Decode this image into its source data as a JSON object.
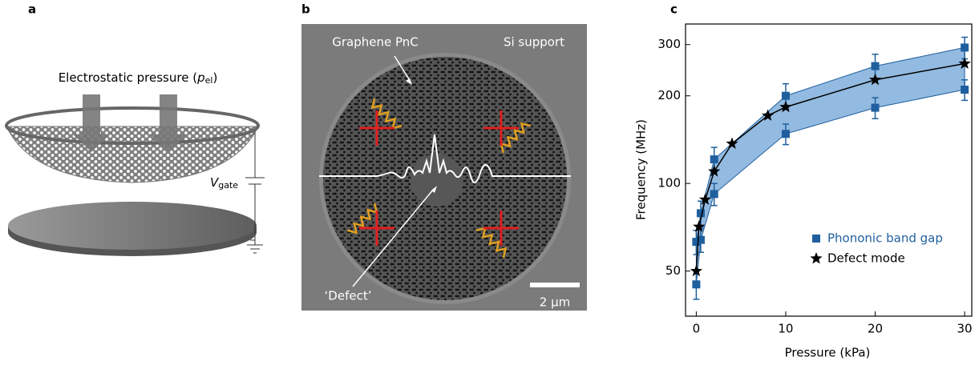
{
  "panel_labels": [
    "a",
    "b",
    "c"
  ],
  "panel_a": {
    "pressure_label": [
      "Electrostatic pressure (",
      "p",
      "el",
      ")"
    ],
    "gate_label": [
      "V",
      "gate"
    ]
  },
  "panel_b": {
    "membrane_label": "Graphene PnC",
    "support_label": "Si support",
    "defect_label": "‘Defect’",
    "scale_label": "2 μm"
  },
  "chart_data": {
    "type": "line",
    "xlabel": "Pressure (kPa)",
    "ylabel": "Frequency (MHz)",
    "xlim": [
      -1.2,
      30.8
    ],
    "ylim": [
      35,
      353
    ],
    "yscale": "log",
    "xticks": [
      0,
      10,
      20,
      30
    ],
    "yticks": [
      50,
      100,
      200,
      300
    ],
    "grid": false,
    "legend": "lower right",
    "series": [
      {
        "name": "Phononic band gap",
        "color": "#1f5f9e",
        "fill": "#6fa3d6",
        "marker": "square",
        "x": [
          0,
          0.5,
          2,
          10,
          20,
          30
        ],
        "values": [
          63,
          79,
          121,
          200,
          253,
          293
        ],
        "errors": [
          6,
          8,
          12,
          20,
          25,
          25
        ],
        "lower_values": [
          45,
          64,
          92,
          148,
          182,
          210
        ],
        "lower_errors": [
          5,
          6,
          8,
          12,
          15,
          17
        ]
      },
      {
        "name": "Defect mode",
        "color": "#000000",
        "marker": "star",
        "x": [
          0,
          0.3,
          1,
          2,
          4,
          8,
          10,
          20,
          30
        ],
        "values": [
          50,
          71,
          88,
          110,
          137,
          171,
          183,
          227,
          258
        ]
      }
    ]
  }
}
